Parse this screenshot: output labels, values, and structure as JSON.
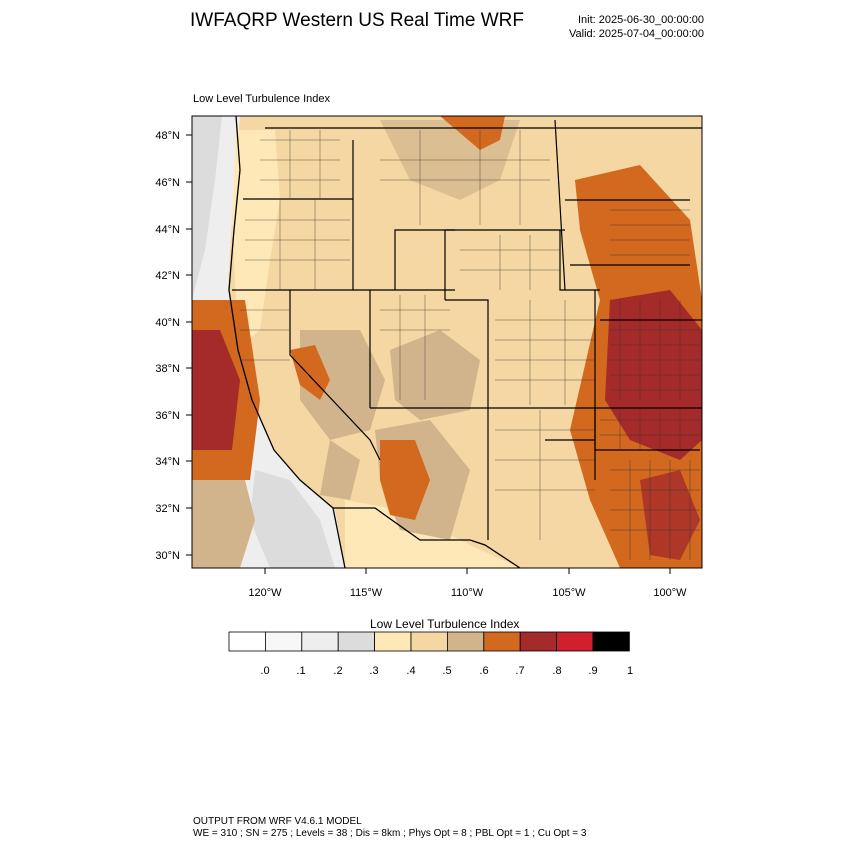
{
  "header": {
    "title": "IWFAQRP Western US Real Time WRF",
    "init": "Init: 2025-06-30_00:00:00",
    "valid": "Valid: 2025-07-04_00:00:00"
  },
  "map": {
    "subtitle": "Low Level Turbulence Index",
    "lat_labels": [
      "48°N",
      "46°N",
      "44°N",
      "42°N",
      "40°N",
      "38°N",
      "36°N",
      "34°N",
      "32°N",
      "30°N"
    ],
    "lon_labels": [
      "120°W",
      "115°W",
      "110°W",
      "105°W",
      "100°W"
    ]
  },
  "colorbar": {
    "title": "Low Level Turbulence Index",
    "labels": [
      ".0",
      ".1",
      ".2",
      ".3",
      ".4",
      ".5",
      ".6",
      ".7",
      ".8",
      ".9",
      "1"
    ],
    "colors": [
      "#ffffff",
      "#f7f7f7",
      "#eeeeee",
      "#dcdcdc",
      "#ffe8b8",
      "#f5d7a3",
      "#d2b48c",
      "#d2691e",
      "#a52a2a",
      "#d02030",
      "#000000"
    ]
  },
  "footer": {
    "line1": "OUTPUT FROM WRF V4.6.1 MODEL",
    "line2": "WE = 310 ; SN = 275 ; Levels = 38 ; Dis = 8km ; Phys Opt = 8 ; PBL Opt = 1 ; Cu Opt = 3"
  }
}
